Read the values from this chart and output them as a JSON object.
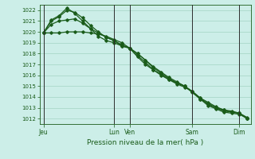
{
  "bg_color": "#cceee8",
  "grid_color": "#99ccbb",
  "line_color": "#1a5c1a",
  "sep_color": "#2d2d2d",
  "title": "Pression niveau de la mer( hPa )",
  "ylim": [
    1011.5,
    1022.5
  ],
  "yticks": [
    1012,
    1013,
    1014,
    1015,
    1016,
    1017,
    1018,
    1019,
    1020,
    1021,
    1022
  ],
  "day_labels": [
    "Jeu",
    "Lun",
    "Ven",
    "Sam",
    "Dim"
  ],
  "day_positions": [
    0,
    9,
    11,
    19,
    25
  ],
  "n_points": 27,
  "line1_x": [
    0,
    1,
    2,
    3,
    4,
    5,
    6,
    7,
    8,
    9,
    10,
    11,
    12,
    13,
    14,
    15,
    16,
    17,
    18,
    19,
    20,
    21,
    22,
    23,
    24,
    25,
    26
  ],
  "line1": [
    1019.9,
    1019.9,
    1019.9,
    1020.0,
    1020.0,
    1020.0,
    1019.9,
    1019.8,
    1019.6,
    1019.3,
    1019.0,
    1018.5,
    1018.0,
    1017.4,
    1016.8,
    1016.3,
    1015.8,
    1015.4,
    1015.0,
    1014.5,
    1013.9,
    1013.5,
    1013.1,
    1012.8,
    1012.7,
    1012.5,
    1012.1
  ],
  "line2_x": [
    0,
    1,
    2,
    3,
    4,
    5,
    6,
    7,
    8,
    9,
    10,
    11,
    12,
    13,
    14,
    15,
    16,
    17,
    18,
    19,
    20,
    21,
    22,
    23,
    24,
    25,
    26
  ],
  "line2": [
    1019.9,
    1020.7,
    1021.0,
    1021.1,
    1021.2,
    1020.8,
    1020.3,
    1019.9,
    1019.5,
    1019.2,
    1018.8,
    1018.5,
    1018.0,
    1017.4,
    1016.7,
    1016.2,
    1015.7,
    1015.3,
    1015.0,
    1014.4,
    1013.8,
    1013.4,
    1013.0,
    1012.8,
    1012.6,
    1012.5,
    1012.0
  ],
  "line3_x": [
    0,
    1,
    2,
    3,
    4,
    5,
    6,
    7,
    8,
    9,
    10,
    11,
    12,
    13,
    14,
    15,
    16,
    17,
    18,
    19,
    20,
    21,
    22,
    23,
    24,
    25,
    26
  ],
  "line3": [
    1019.9,
    1021.0,
    1021.4,
    1022.0,
    1021.8,
    1021.3,
    1020.6,
    1020.0,
    1019.5,
    1019.2,
    1018.7,
    1018.5,
    1017.8,
    1017.2,
    1016.5,
    1016.0,
    1015.6,
    1015.3,
    1015.0,
    1014.5,
    1013.9,
    1013.3,
    1013.0,
    1012.7,
    1012.6,
    1012.5,
    1012.0
  ],
  "line4_x": [
    0,
    1,
    2,
    3,
    4,
    5,
    6,
    7,
    8,
    9,
    10,
    11,
    12,
    13,
    14,
    15,
    16,
    17,
    18,
    19,
    20,
    21,
    22,
    23,
    24,
    25,
    26
  ],
  "line4": [
    1019.9,
    1021.1,
    1021.5,
    1022.2,
    1021.7,
    1021.0,
    1020.3,
    1019.6,
    1019.2,
    1019.0,
    1018.7,
    1018.5,
    1017.7,
    1017.0,
    1016.5,
    1016.1,
    1015.6,
    1015.2,
    1014.9,
    1014.5,
    1013.8,
    1013.2,
    1012.9,
    1012.6,
    1012.5,
    1012.4,
    1012.0
  ]
}
